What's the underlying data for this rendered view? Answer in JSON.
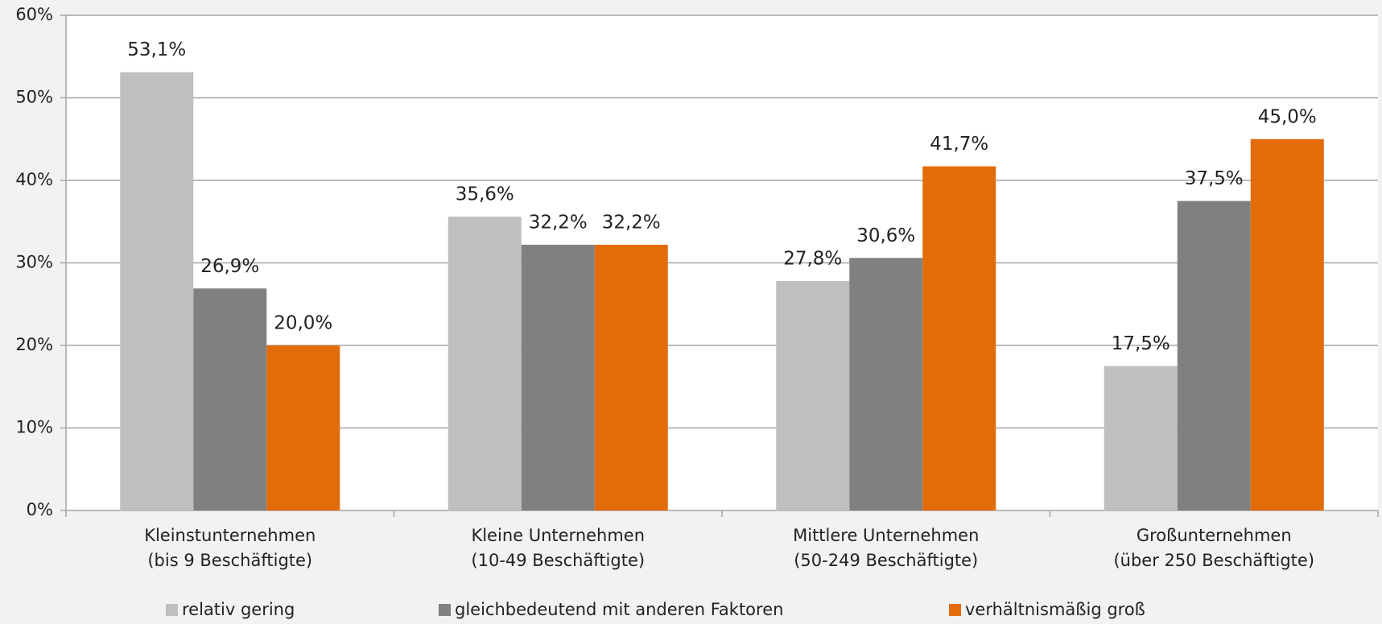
{
  "chart_data": {
    "type": "bar",
    "categories": [
      "Kleinstunternehmen\n(bis 9 Beschäftigte)",
      "Kleine Unternehmen\n(10-49 Beschäftigte)",
      "Mittlere Unternehmen\n(50-249 Beschäftigte)",
      "Großunternehmen\n(über 250 Beschäftigte)"
    ],
    "series": [
      {
        "name": "relativ gering",
        "color": "#bfbfbf",
        "values": [
          53.1,
          35.6,
          27.8,
          17.5
        ],
        "value_labels": [
          "53,1%",
          "35,6%",
          "27,8%",
          "17,5%"
        ]
      },
      {
        "name": "gleichbedeutend mit anderen Faktoren",
        "color": "#808080",
        "values": [
          26.9,
          32.2,
          30.6,
          37.5
        ],
        "value_labels": [
          "26,9%",
          "32,2%",
          "30,6%",
          "37,5%"
        ]
      },
      {
        "name": "verhältnismäßig groß",
        "color": "#e36c0a",
        "values": [
          20.0,
          32.2,
          41.7,
          45.0
        ],
        "value_labels": [
          "20,0%",
          "32,2%",
          "41,7%",
          "45,0%"
        ]
      }
    ],
    "ylim": [
      0,
      60
    ],
    "yticks": [
      {
        "value": 0,
        "label": "0%"
      },
      {
        "value": 10,
        "label": "10%"
      },
      {
        "value": 20,
        "label": "20%"
      },
      {
        "value": 30,
        "label": "30%"
      },
      {
        "value": 40,
        "label": "40%"
      },
      {
        "value": 50,
        "label": "50%"
      },
      {
        "value": 60,
        "label": "60%"
      }
    ],
    "grid": true,
    "legend": "bottom"
  }
}
